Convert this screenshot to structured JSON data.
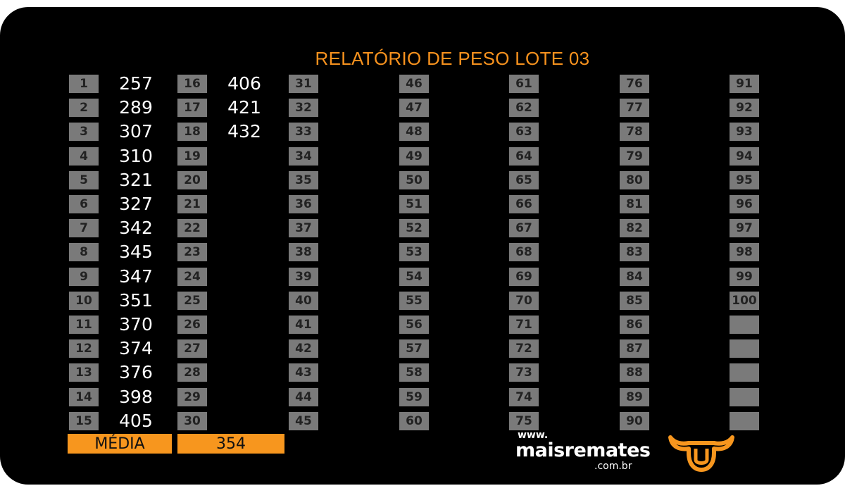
{
  "title": "RELATÓRIO DE PESO LOTE  03",
  "columns": [
    {
      "start": 1,
      "values": [
        "257",
        "289",
        "307",
        "310",
        "321",
        "327",
        "342",
        "345",
        "347",
        "351",
        "370",
        "374",
        "376",
        "398",
        "405"
      ]
    },
    {
      "start": 16,
      "values": [
        "406",
        "421",
        "432"
      ]
    },
    {
      "start": 31,
      "values": []
    },
    {
      "start": 46,
      "values": []
    },
    {
      "start": 61,
      "values": []
    },
    {
      "start": 76,
      "values": []
    },
    {
      "start": 91,
      "values": []
    }
  ],
  "last_number": 100,
  "media_label": "MÉDIA",
  "media_value": "354",
  "logo": {
    "www": "www.",
    "name": "maisremates",
    "domain": ".com.br"
  },
  "colors": {
    "accent": "#f7961e",
    "cell": "#7a7a7a",
    "background": "#000000"
  },
  "icons": {
    "logo_mark": "bull-head-icon"
  }
}
